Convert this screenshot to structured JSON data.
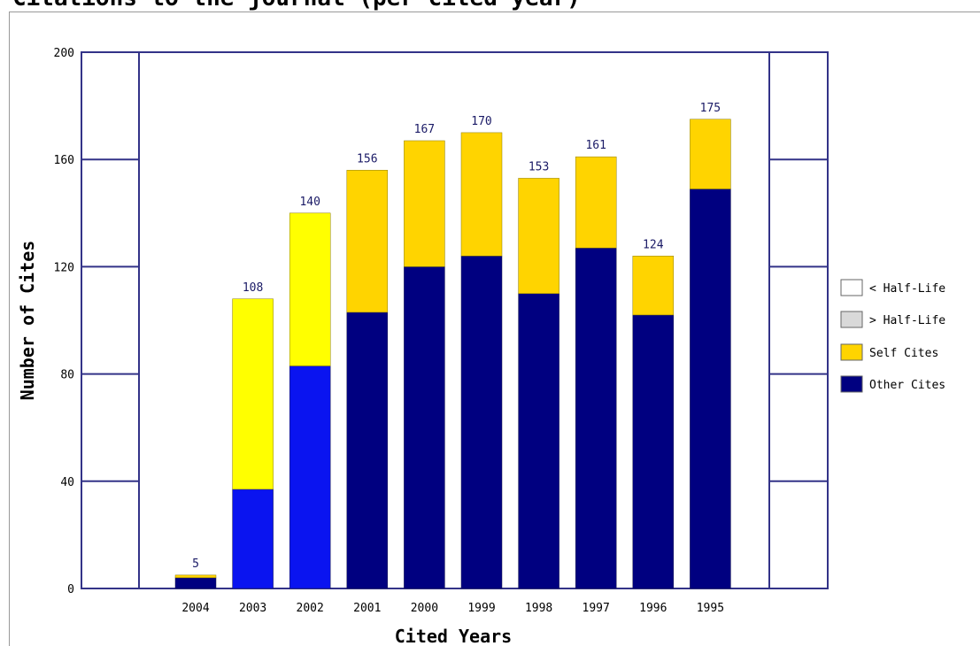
{
  "page": {
    "title": "Citations to the journal (per cited year)"
  },
  "colors": {
    "other_cites": "#000080",
    "other_cites_recent": "#0a14f0",
    "self_cites": "#ffd400",
    "self_cites_recent": "#ffff00",
    "less_half_life": "#ffffff",
    "more_half_life": "#d9d9d9",
    "axis": "#333388",
    "plot_bg": "#ffffff"
  },
  "chart_data": {
    "type": "bar",
    "stacked": true,
    "title": "Citations to the journal (per cited year)",
    "xlabel": "Cited Years",
    "ylabel": "Number of Cites",
    "ylim": [
      0,
      200
    ],
    "yticks": [
      "0",
      "40",
      "80",
      "120",
      "160",
      "200"
    ],
    "categories": [
      "2004",
      "2003",
      "2002",
      "2001",
      "2000",
      "1999",
      "1998",
      "1997",
      "1996",
      "1995"
    ],
    "totals": [
      5,
      108,
      140,
      156,
      167,
      170,
      153,
      161,
      124,
      175
    ],
    "series": [
      {
        "name": "Other Cites",
        "values": [
          4,
          37,
          83,
          103,
          120,
          124,
          110,
          127,
          102,
          149
        ]
      },
      {
        "name": "Self Cites",
        "values": [
          1,
          71,
          57,
          53,
          47,
          46,
          43,
          34,
          22,
          26
        ]
      }
    ],
    "legend": {
      "position": "right",
      "items": [
        "< Half-Life",
        "> Half-Life",
        "Self Cites",
        "Other Cites"
      ]
    },
    "grid": false
  }
}
